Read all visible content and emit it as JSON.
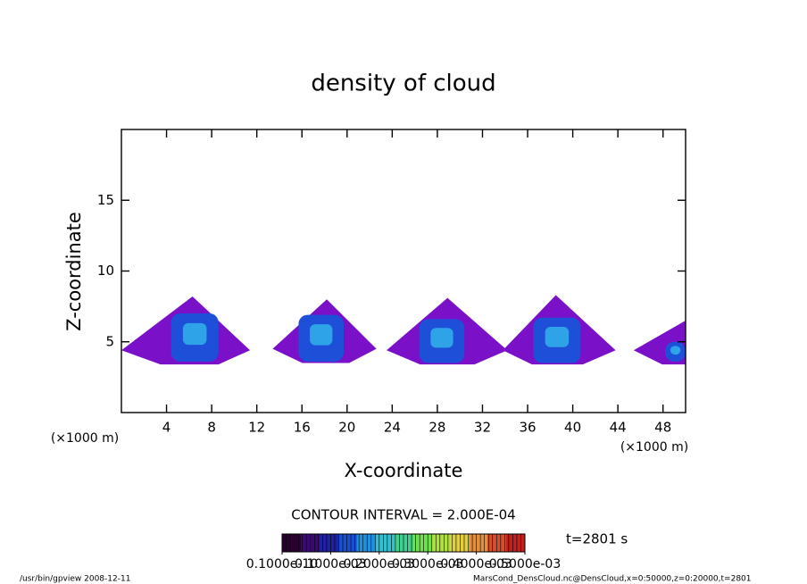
{
  "chart_data": {
    "type": "contour",
    "title": "density of cloud",
    "xlabel": "X-coordinate",
    "ylabel": "Z-coordinate",
    "x_unit": "(×1000 m)",
    "xlim": [
      0,
      50
    ],
    "ylim": [
      0,
      20
    ],
    "xticks": [
      4,
      8,
      12,
      16,
      20,
      24,
      28,
      32,
      36,
      40,
      44,
      48
    ],
    "yticks": [
      5,
      10,
      15
    ],
    "outer_color": "#7a10c8",
    "core_color": "#1e4fd8",
    "inner_color": "#35c8f0",
    "clouds": [
      {
        "x": 6.3,
        "x_range": [
          0,
          11.4
        ],
        "top": 8.2,
        "base": 3.4,
        "core_x": [
          4.4,
          8.6
        ],
        "core_top": 7.0,
        "core_base": 3.6
      },
      {
        "x": 18.2,
        "x_range": [
          13.4,
          22.6
        ],
        "top": 8.0,
        "base": 3.5,
        "core_x": [
          15.7,
          19.7
        ],
        "core_top": 6.9,
        "core_base": 3.6
      },
      {
        "x": 28.9,
        "x_range": [
          23.5,
          34.2
        ],
        "top": 8.1,
        "base": 3.4,
        "core_x": [
          26.4,
          30.4
        ],
        "core_top": 6.6,
        "core_base": 3.5
      },
      {
        "x": 38.5,
        "x_range": [
          33.8,
          43.8
        ],
        "top": 8.3,
        "base": 3.4,
        "core_x": [
          36.5,
          40.7
        ],
        "core_top": 6.7,
        "core_base": 3.5
      },
      {
        "x": 50,
        "x_range": [
          45.4,
          50
        ],
        "top": 6.5,
        "base": 3.4,
        "core_x": [
          48.2,
          50
        ],
        "core_top": 5.0,
        "core_base": 3.6
      }
    ],
    "contour_interval": "CONTOUR INTERVAL = 2.000E-04",
    "time_label": "t=2801 s",
    "colorbar": {
      "lim": [
        0,
        0.0005
      ],
      "colors": [
        "#2a0030",
        "#3a0a70",
        "#2020a0",
        "#1a50d0",
        "#2090e0",
        "#30c0d0",
        "#40d090",
        "#70e050",
        "#b0e040",
        "#e0d040",
        "#e09040",
        "#d05030",
        "#c02020"
      ],
      "ticks": [
        {
          "value": 1e-11,
          "label": "0.1000e-10"
        },
        {
          "value": 0.0001,
          "label": "0.1000e-03"
        },
        {
          "value": 0.0002,
          "label": "0.2000e-03"
        },
        {
          "value": 0.0003,
          "label": "0.3000e-03"
        },
        {
          "value": 0.0004,
          "label": "0.4000e-03"
        },
        {
          "value": 0.0005,
          "label": "0.5000e-03"
        }
      ]
    },
    "footer_left": "/usr/bin/gpview   2008-12-11",
    "footer_right": "MarsCond_DensCloud.nc@DensCloud,x=0:50000,z=0:20000,t=2801"
  }
}
